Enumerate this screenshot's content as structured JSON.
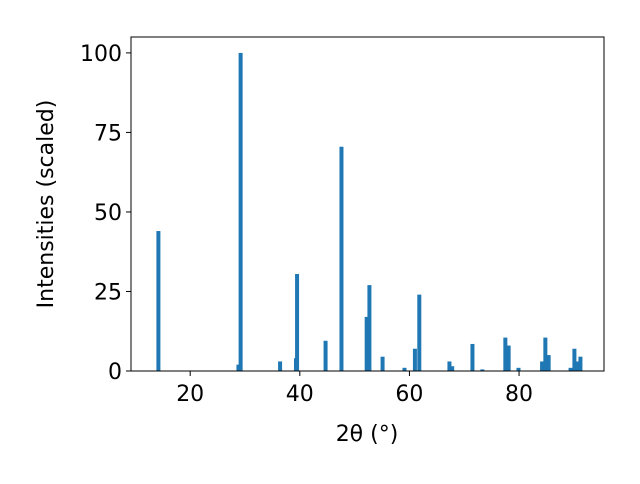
{
  "chart_data": {
    "type": "bar",
    "xlabel": "2θ (°)",
    "ylabel": "Intensities (scaled)",
    "x": [
      14.2,
      28.8,
      29.2,
      36.4,
      39.3,
      39.5,
      44.7,
      47.6,
      52.2,
      52.7,
      55.1,
      59.1,
      61.0,
      61.8,
      67.3,
      67.8,
      71.5,
      73.3,
      77.5,
      78.1,
      79.9,
      84.2,
      84.8,
      85.4,
      89.4,
      90.1,
      90.7,
      91.2
    ],
    "values": [
      44,
      2,
      100,
      3,
      4,
      30.5,
      9.5,
      70.5,
      17,
      27,
      4.5,
      1,
      7,
      24,
      3,
      1.5,
      8.5,
      0.5,
      10.5,
      8,
      1,
      3,
      10.5,
      5,
      1,
      7,
      3,
      4.5
    ],
    "color": "#1f77b4",
    "xlim": [
      9.2,
      95.5
    ],
    "xticks": [
      20,
      40,
      60,
      80
    ],
    "ylim": [
      0,
      105
    ],
    "yticks": [
      0,
      25,
      50,
      75,
      100
    ]
  }
}
